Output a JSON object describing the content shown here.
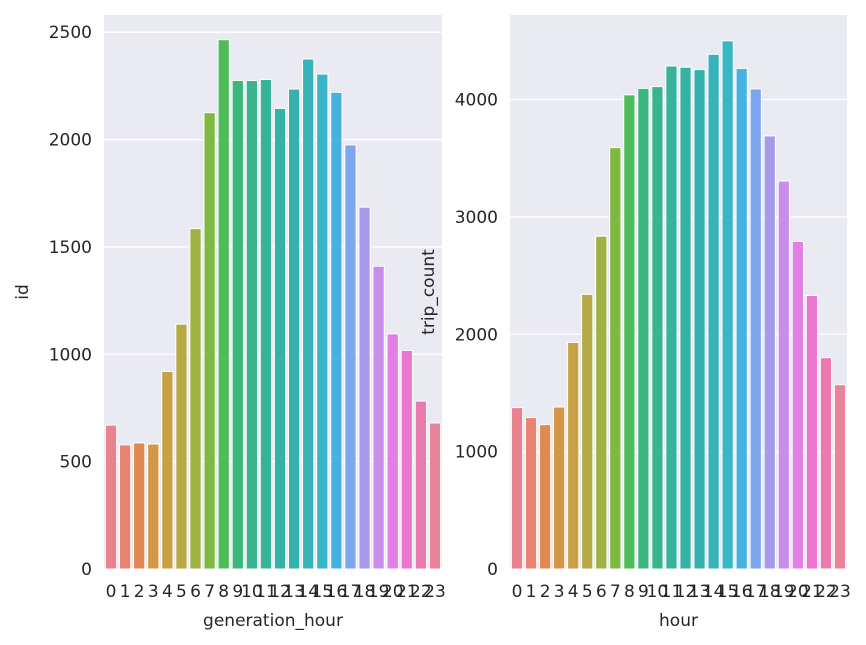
{
  "palette": [
    "#e8828e",
    "#e88472",
    "#e08a52",
    "#d29846",
    "#c7a144",
    "#b5a945",
    "#9fb143",
    "#7fb940",
    "#4ebc58",
    "#3cb77c",
    "#39b48d",
    "#37b39a",
    "#36b2a4",
    "#36b2ae",
    "#37b3b9",
    "#39b6c6",
    "#45b3df",
    "#7da7ec",
    "#a89aea",
    "#c98ee8",
    "#e07fe4",
    "#ea76cf",
    "#e97aae",
    "#e8849a"
  ],
  "chart_data": [
    {
      "type": "bar",
      "xlabel": "generation_hour",
      "ylabel": "id",
      "categories": [
        "0",
        "1",
        "2",
        "3",
        "4",
        "5",
        "6",
        "7",
        "8",
        "9",
        "10",
        "11",
        "12",
        "13",
        "14",
        "15",
        "16",
        "17",
        "18",
        "19",
        "20",
        "21",
        "22",
        "23"
      ],
      "values": [
        670,
        578,
        587,
        582,
        920,
        1140,
        1585,
        2125,
        2465,
        2275,
        2275,
        2280,
        2145,
        2235,
        2375,
        2305,
        2220,
        1975,
        1685,
        1410,
        1095,
        1018,
        782,
        680
      ],
      "ylim": [
        0,
        2580
      ],
      "yticks": [
        0,
        500,
        1000,
        1500,
        2000,
        2500
      ],
      "grid": true
    },
    {
      "type": "bar",
      "xlabel": "hour",
      "ylabel": "trip_count",
      "categories": [
        "0",
        "1",
        "2",
        "3",
        "4",
        "5",
        "6",
        "7",
        "8",
        "9",
        "10",
        "11",
        "12",
        "13",
        "14",
        "15",
        "16",
        "17",
        "18",
        "19",
        "20",
        "21",
        "22",
        "23"
      ],
      "values": [
        1375,
        1290,
        1230,
        1380,
        1930,
        2340,
        2835,
        3590,
        4040,
        4095,
        4110,
        4285,
        4275,
        4255,
        4385,
        4500,
        4265,
        4090,
        3690,
        3305,
        2790,
        2330,
        1800,
        1570
      ],
      "ylim": [
        0,
        4720
      ],
      "yticks": [
        0,
        1000,
        2000,
        3000,
        4000
      ],
      "grid": true
    }
  ]
}
